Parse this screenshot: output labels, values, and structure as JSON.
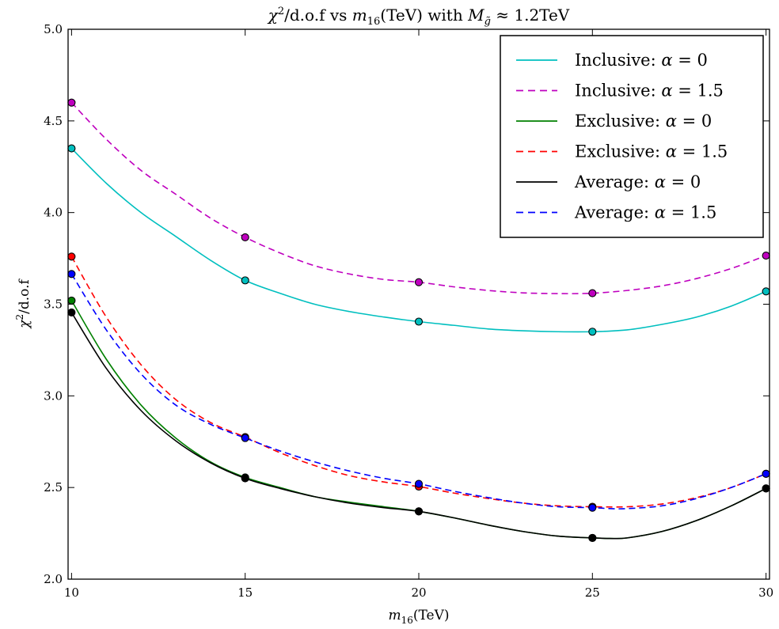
{
  "chart_data": {
    "type": "line",
    "title_parts": {
      "chi": "χ",
      "sq": "2",
      "mid": "/d.o.f vs ",
      "m": "m",
      "msub": "16",
      "unit": "(TeV) with ",
      "M": "M",
      "Msub": "g̃",
      "tail": " ≈ 1.2TeV"
    },
    "xlabel_parts": {
      "m": "m",
      "sub": "16",
      "unit": "(TeV)"
    },
    "ylabel_parts": {
      "chi": "χ",
      "sq": "2",
      "rest": "/d.o.f"
    },
    "xlim": [
      9.9,
      30.1
    ],
    "ylim": [
      2.0,
      5.0
    ],
    "x_ticks": [
      10,
      15,
      20,
      25,
      30
    ],
    "x_tick_labels": [
      "10",
      "15",
      "20",
      "25",
      "30"
    ],
    "y_ticks": [
      2.0,
      2.5,
      3.0,
      3.5,
      4.0,
      4.5,
      5.0
    ],
    "y_tick_labels": [
      "2.0",
      "2.5",
      "3.0",
      "3.5",
      "4.0",
      "4.5",
      "5.0"
    ],
    "legend_position": "top-right",
    "grid": false,
    "x": [
      10,
      15,
      20,
      25,
      30
    ],
    "series": [
      {
        "key": "inclusive-alpha-0",
        "name_main": "Inclusive: ",
        "name_alpha": "α",
        "name_eq": " = 0",
        "color": "#00bfbf",
        "dashed": false,
        "values": [
          4.35,
          3.63,
          3.405,
          3.35,
          3.57
        ],
        "curve": [
          [
            10,
            4.35
          ],
          [
            11,
            4.16
          ],
          [
            12,
            4.0
          ],
          [
            13,
            3.87
          ],
          [
            14,
            3.74
          ],
          [
            15,
            3.63
          ],
          [
            16,
            3.56
          ],
          [
            17,
            3.5
          ],
          [
            18,
            3.46
          ],
          [
            19,
            3.43
          ],
          [
            20,
            3.405
          ],
          [
            21,
            3.385
          ],
          [
            22,
            3.365
          ],
          [
            23,
            3.355
          ],
          [
            24,
            3.35
          ],
          [
            25,
            3.35
          ],
          [
            26,
            3.36
          ],
          [
            27,
            3.39
          ],
          [
            28,
            3.43
          ],
          [
            29,
            3.49
          ],
          [
            30,
            3.57
          ]
        ]
      },
      {
        "key": "inclusive-alpha-1-5",
        "name_main": "Inclusive: ",
        "name_alpha": "α",
        "name_eq": " = 1.5",
        "color": "#bf00bf",
        "dashed": true,
        "values": [
          4.6,
          3.865,
          3.62,
          3.56,
          3.765
        ],
        "curve": [
          [
            10,
            4.6
          ],
          [
            11,
            4.4
          ],
          [
            12,
            4.23
          ],
          [
            13,
            4.1
          ],
          [
            14,
            3.97
          ],
          [
            15,
            3.865
          ],
          [
            16,
            3.78
          ],
          [
            17,
            3.71
          ],
          [
            18,
            3.665
          ],
          [
            19,
            3.635
          ],
          [
            20,
            3.62
          ],
          [
            21,
            3.595
          ],
          [
            22,
            3.575
          ],
          [
            23,
            3.562
          ],
          [
            24,
            3.558
          ],
          [
            25,
            3.56
          ],
          [
            26,
            3.575
          ],
          [
            27,
            3.6
          ],
          [
            28,
            3.64
          ],
          [
            29,
            3.695
          ],
          [
            30,
            3.765
          ]
        ]
      },
      {
        "key": "exclusive-alpha-0",
        "name_main": "Exclusive: ",
        "name_alpha": "α",
        "name_eq": " = 0",
        "color": "#008000",
        "dashed": false,
        "values": [
          3.52,
          2.555,
          2.37,
          2.225,
          2.495
        ],
        "curve": [
          [
            10,
            3.52
          ],
          [
            11,
            3.2
          ],
          [
            12,
            2.95
          ],
          [
            13,
            2.77
          ],
          [
            14,
            2.64
          ],
          [
            15,
            2.555
          ],
          [
            16,
            2.5
          ],
          [
            17,
            2.45
          ],
          [
            18,
            2.42
          ],
          [
            19,
            2.395
          ],
          [
            20,
            2.37
          ],
          [
            21,
            2.335
          ],
          [
            22,
            2.295
          ],
          [
            23,
            2.26
          ],
          [
            24,
            2.235
          ],
          [
            25,
            2.225
          ],
          [
            25.5,
            2.222
          ],
          [
            26,
            2.225
          ],
          [
            27,
            2.26
          ],
          [
            28,
            2.32
          ],
          [
            29,
            2.4
          ],
          [
            30,
            2.495
          ]
        ]
      },
      {
        "key": "exclusive-alpha-1-5",
        "name_main": "Exclusive: ",
        "name_alpha": "α",
        "name_eq": " = 1.5",
        "color": "#ff0000",
        "dashed": true,
        "values": [
          3.76,
          2.775,
          2.505,
          2.395,
          2.575
        ],
        "curve": [
          [
            10,
            3.76
          ],
          [
            11,
            3.43
          ],
          [
            12,
            3.17
          ],
          [
            13,
            2.98
          ],
          [
            14,
            2.855
          ],
          [
            15,
            2.775
          ],
          [
            16,
            2.69
          ],
          [
            17,
            2.62
          ],
          [
            18,
            2.565
          ],
          [
            19,
            2.53
          ],
          [
            20,
            2.505
          ],
          [
            21,
            2.47
          ],
          [
            22,
            2.44
          ],
          [
            23,
            2.415
          ],
          [
            24,
            2.4
          ],
          [
            25,
            2.395
          ],
          [
            26,
            2.395
          ],
          [
            27,
            2.41
          ],
          [
            28,
            2.445
          ],
          [
            29,
            2.5
          ],
          [
            30,
            2.575
          ]
        ]
      },
      {
        "key": "average-alpha-0",
        "name_main": "Average: ",
        "name_alpha": "α",
        "name_eq": " = 0",
        "color": "#000000",
        "dashed": false,
        "values": [
          3.455,
          2.55,
          2.37,
          2.225,
          2.495
        ],
        "curve": [
          [
            10,
            3.455
          ],
          [
            11,
            3.15
          ],
          [
            12,
            2.92
          ],
          [
            13,
            2.755
          ],
          [
            14,
            2.635
          ],
          [
            15,
            2.55
          ],
          [
            16,
            2.495
          ],
          [
            17,
            2.45
          ],
          [
            18,
            2.415
          ],
          [
            19,
            2.39
          ],
          [
            20,
            2.37
          ],
          [
            21,
            2.335
          ],
          [
            22,
            2.295
          ],
          [
            23,
            2.26
          ],
          [
            24,
            2.235
          ],
          [
            25,
            2.225
          ],
          [
            25.5,
            2.222
          ],
          [
            26,
            2.225
          ],
          [
            27,
            2.26
          ],
          [
            28,
            2.32
          ],
          [
            29,
            2.4
          ],
          [
            30,
            2.495
          ]
        ]
      },
      {
        "key": "average-alpha-1-5",
        "name_main": "Average: ",
        "name_alpha": "α",
        "name_eq": " = 1.5",
        "color": "#0000ff",
        "dashed": true,
        "values": [
          3.665,
          2.77,
          2.52,
          2.39,
          2.575
        ],
        "curve": [
          [
            10,
            3.665
          ],
          [
            11,
            3.36
          ],
          [
            12,
            3.12
          ],
          [
            13,
            2.95
          ],
          [
            14,
            2.845
          ],
          [
            15,
            2.77
          ],
          [
            16,
            2.7
          ],
          [
            17,
            2.64
          ],
          [
            18,
            2.59
          ],
          [
            19,
            2.55
          ],
          [
            20,
            2.52
          ],
          [
            21,
            2.48
          ],
          [
            22,
            2.445
          ],
          [
            23,
            2.415
          ],
          [
            24,
            2.395
          ],
          [
            25,
            2.39
          ],
          [
            25.5,
            2.385
          ],
          [
            26,
            2.385
          ],
          [
            27,
            2.4
          ],
          [
            28,
            2.44
          ],
          [
            29,
            2.5
          ],
          [
            30,
            2.575
          ]
        ]
      }
    ]
  }
}
